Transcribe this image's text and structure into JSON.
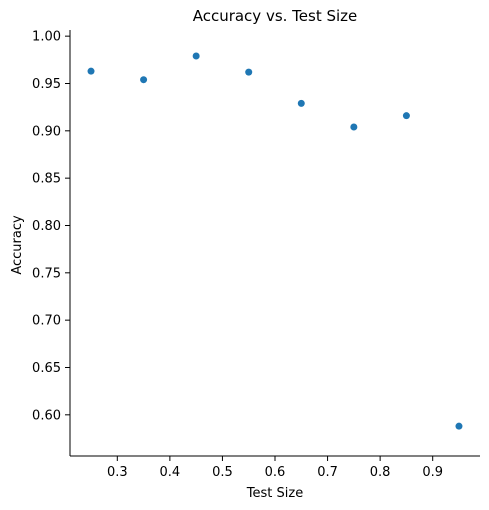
{
  "chart_data": {
    "type": "scatter",
    "title": "Accuracy vs. Test Size",
    "xlabel": "Test Size",
    "ylabel": "Accuracy",
    "x": [
      0.25,
      0.35,
      0.45,
      0.55,
      0.65,
      0.75,
      0.85,
      0.95
    ],
    "y": [
      0.963,
      0.954,
      0.979,
      0.962,
      0.929,
      0.904,
      0.916,
      0.588
    ],
    "xlim": [
      0.21,
      0.99
    ],
    "ylim": [
      0.5565,
      1.0065
    ],
    "xticks": [
      0.3,
      0.4,
      0.5,
      0.6,
      0.7,
      0.8,
      0.9
    ],
    "xtick_labels": [
      "0.3",
      "0.4",
      "0.5",
      "0.6",
      "0.7",
      "0.8",
      "0.9"
    ],
    "yticks": [
      0.6,
      0.65,
      0.7,
      0.75,
      0.8,
      0.85,
      0.9,
      0.95,
      1.0
    ],
    "ytick_labels": [
      "0.60",
      "0.65",
      "0.70",
      "0.75",
      "0.80",
      "0.85",
      "0.90",
      "0.95",
      "1.00"
    ],
    "grid": false,
    "legend": "none",
    "marker_color": "#1f77b4"
  }
}
